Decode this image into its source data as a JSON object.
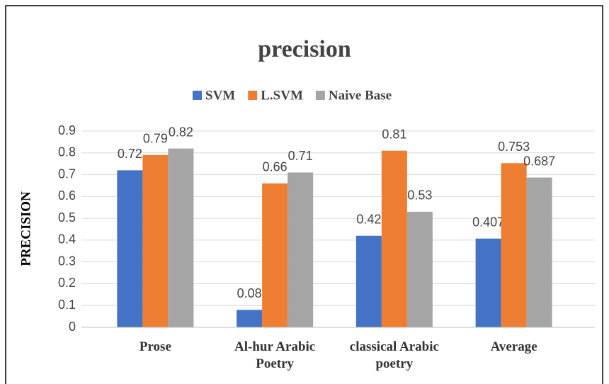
{
  "chart_data": {
    "type": "bar",
    "title": "precision",
    "ylabel": "PRECISION",
    "categories": [
      "Prose",
      "Al-hur Arabic Poetry",
      "classical Arabic poetry",
      "Average"
    ],
    "series": [
      {
        "name": "SVM",
        "color": "#4472c4",
        "values": [
          0.72,
          0.08,
          0.42,
          0.407
        ]
      },
      {
        "name": "L.SVM",
        "color": "#ed7d31",
        "values": [
          0.79,
          0.66,
          0.81,
          0.753
        ]
      },
      {
        "name": "Naive Base",
        "color": "#a5a5a5",
        "values": [
          0.82,
          0.71,
          0.53,
          0.687
        ]
      }
    ],
    "ylim": [
      0,
      0.9
    ],
    "yticks": [
      0,
      0.1,
      0.2,
      0.3,
      0.4,
      0.5,
      0.6,
      0.7,
      0.8,
      0.9
    ],
    "grid": true,
    "legend": "top"
  }
}
